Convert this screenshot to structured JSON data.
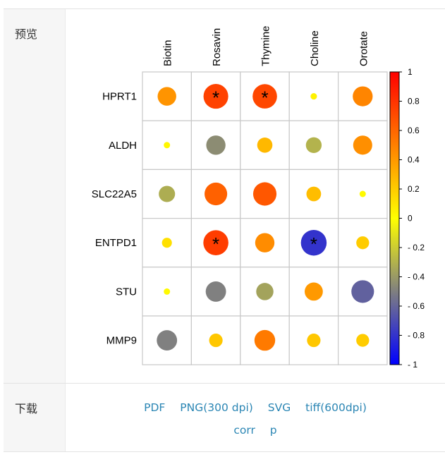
{
  "sections": {
    "preview_label": "预览",
    "download_label": "下载"
  },
  "downloads": {
    "row1": [
      "PDF",
      "PNG(300 dpi)",
      "SVG",
      "tiff(600dpi)"
    ],
    "row2": [
      "corr",
      "p"
    ]
  },
  "chart_data": {
    "type": "heatmap",
    "subtype": "correlation-circle",
    "columns": [
      "Biotin",
      "Rosavin",
      "Thymine",
      "Choline",
      "Orotate"
    ],
    "rows": [
      "HPRT1",
      "ALDH",
      "SLC22A5",
      "ENTPD1",
      "STU",
      "MMP9"
    ],
    "values": [
      [
        0.42,
        0.74,
        0.72,
        0.05,
        0.48
      ],
      [
        0.03,
        -0.45,
        0.28,
        -0.3,
        0.44
      ],
      [
        -0.32,
        0.62,
        0.66,
        0.26,
        0.02
      ],
      [
        0.12,
        0.76,
        0.45,
        -0.8,
        0.2
      ],
      [
        0.02,
        -0.5,
        -0.36,
        0.4,
        -0.62
      ],
      [
        -0.5,
        0.22,
        0.52,
        0.22,
        0.2
      ]
    ],
    "significant": [
      [
        false,
        true,
        true,
        false,
        false
      ],
      [
        false,
        false,
        false,
        false,
        false
      ],
      [
        false,
        false,
        false,
        false,
        false
      ],
      [
        false,
        true,
        false,
        true,
        false
      ],
      [
        false,
        false,
        false,
        false,
        false
      ],
      [
        false,
        false,
        false,
        false,
        false
      ]
    ],
    "significance_mark": "*",
    "colorbar": {
      "range": [
        -1,
        1
      ],
      "ticks": [
        1,
        0.8,
        0.6,
        0.4,
        0.2,
        0,
        -0.2,
        -0.4,
        -0.6,
        -0.8,
        -1
      ],
      "tick_labels": [
        "1",
        "0.8",
        "0.6",
        "0.4",
        "0.2",
        "0",
        "- 0.2",
        "- 0.4",
        "- 0.6",
        "- 0.8",
        "- 1"
      ],
      "colors": [
        "#0000ff",
        "#ffff00",
        "#ff0000"
      ],
      "placement": "right"
    },
    "grid": true
  }
}
